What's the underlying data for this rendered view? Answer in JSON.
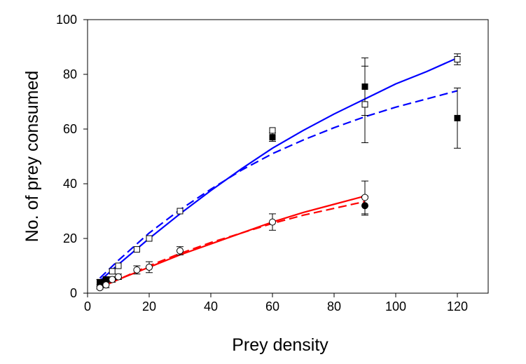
{
  "chart_data": {
    "type": "scatter",
    "xlabel": "Prey density",
    "ylabel": "No. of prey consumed",
    "xlim": [
      0,
      130
    ],
    "ylim": [
      0,
      100
    ],
    "x_ticks": [
      "0",
      "20",
      "40",
      "60",
      "80",
      "100",
      "120"
    ],
    "y_ticks": [
      "0",
      "20",
      "40",
      "60",
      "80",
      "100"
    ],
    "x_tick_values": [
      0,
      20,
      40,
      60,
      80,
      100,
      120
    ],
    "y_tick_values": [
      0,
      20,
      40,
      60,
      80,
      100
    ],
    "grid": false,
    "legend": "none",
    "series": [
      {
        "marker": "open-square",
        "color": "#000000",
        "points": [
          {
            "x": 4,
            "y": 4,
            "err": 0
          },
          {
            "x": 6,
            "y": 5,
            "err": 0
          },
          {
            "x": 8,
            "y": 8,
            "err": 0
          },
          {
            "x": 10,
            "y": 10,
            "err": 0
          },
          {
            "x": 16,
            "y": 16,
            "err": 0
          },
          {
            "x": 20,
            "y": 20,
            "err": 0
          },
          {
            "x": 30,
            "y": 30,
            "err": 0
          },
          {
            "x": 60,
            "y": 59.5,
            "err": 0
          },
          {
            "x": 90,
            "y": 69,
            "err": 14
          },
          {
            "x": 120,
            "y": 85.5,
            "err": 2
          }
        ]
      },
      {
        "marker": "filled-square",
        "color": "#000000",
        "points": [
          {
            "x": 4,
            "y": 4,
            "err": 1
          },
          {
            "x": 6,
            "y": 5,
            "err": 0
          },
          {
            "x": 60,
            "y": 57,
            "err": 1.5
          },
          {
            "x": 90,
            "y": 75.5,
            "err": 10.5
          },
          {
            "x": 120,
            "y": 64,
            "err": 11
          }
        ]
      },
      {
        "marker": "open-circle",
        "color": "#000000",
        "points": [
          {
            "x": 4,
            "y": 2,
            "err": 0.5
          },
          {
            "x": 6,
            "y": 3,
            "err": 1
          },
          {
            "x": 8,
            "y": 5,
            "err": 1
          },
          {
            "x": 10,
            "y": 6,
            "err": 1
          },
          {
            "x": 16,
            "y": 8.5,
            "err": 1.5
          },
          {
            "x": 20,
            "y": 9.5,
            "err": 2
          },
          {
            "x": 30,
            "y": 15.5,
            "err": 1.5
          },
          {
            "x": 60,
            "y": 26,
            "err": 3
          },
          {
            "x": 90,
            "y": 35,
            "err": 6
          }
        ]
      },
      {
        "marker": "filled-circle",
        "color": "#000000",
        "points": [
          {
            "x": 90,
            "y": 32,
            "err": 3.5
          }
        ]
      }
    ],
    "curves": [
      {
        "style": "solid",
        "color": "#0000FF",
        "x": [
          4,
          10,
          20,
          30,
          40,
          50,
          60,
          70,
          80,
          90,
          100,
          110,
          120
        ],
        "y": [
          4.5,
          10.5,
          20,
          29,
          37.5,
          45.5,
          53,
          59.5,
          65.5,
          71,
          76.5,
          81,
          86
        ]
      },
      {
        "style": "dashed",
        "color": "#0000FF",
        "x": [
          4,
          10,
          20,
          30,
          40,
          50,
          60,
          70,
          80,
          90,
          100,
          110,
          120
        ],
        "y": [
          5.5,
          12,
          22,
          30.5,
          38,
          45,
          51,
          56,
          60.5,
          64.5,
          68,
          71,
          74
        ]
      },
      {
        "style": "solid",
        "color": "#FF0000",
        "x": [
          4,
          10,
          20,
          30,
          40,
          50,
          60,
          70,
          80,
          90
        ],
        "y": [
          2,
          5,
          9.5,
          14,
          18,
          22,
          26,
          29.5,
          32.5,
          35.5
        ]
      },
      {
        "style": "dashed",
        "color": "#FF0000",
        "x": [
          4,
          10,
          20,
          30,
          40,
          50,
          60,
          70,
          80,
          90
        ],
        "y": [
          2,
          5,
          10,
          14.5,
          18.5,
          22,
          25.5,
          28.5,
          31,
          33.5
        ]
      }
    ]
  }
}
